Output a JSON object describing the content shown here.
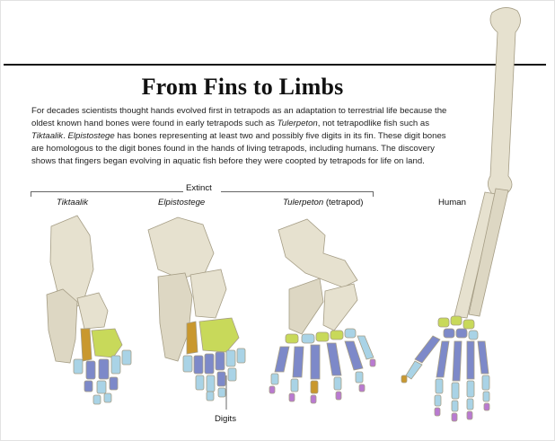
{
  "title": "From Fins to Limbs",
  "description": {
    "p1": "For decades scientists thought hands evolved first in tetrapods as an adaptation to terrestrial life because the oldest known hand bones were found in early tetrapods such as ",
    "tulerpeton": "Tulerpeton",
    "p2": ", not tetrapodlike fish such as ",
    "tiktaalik": "Tiktaalik",
    "p3": ". ",
    "elpistostege": "Elpistostege",
    "p4": " has bones representing at least two and possibly five digits in its fin. These digit bones are homologous to the digit bones found in the hands of living tetrapods, including humans. The discovery shows that fingers began evolving in aquatic fish before they were coopted by tetrapods for life on land."
  },
  "group_label": "Extinct",
  "specimens": [
    {
      "name": "Tiktaalik",
      "note": ""
    },
    {
      "name": "Elpistostege",
      "note": ""
    },
    {
      "name": "Tulerpeton",
      "note": " (tetrapod)"
    },
    {
      "name": "Human",
      "note": ""
    }
  ],
  "digits_label": "Digits",
  "colors": {
    "bone": "#e6e1cf",
    "bone_shadow": "#c9c2ab",
    "carpal_green": "#c8d95a",
    "carpal_orange": "#c9982e",
    "metacarpal_blue": "#7d89c9",
    "phalanx_light_blue": "#a9d3e6",
    "tip_purple": "#b97ad1"
  }
}
